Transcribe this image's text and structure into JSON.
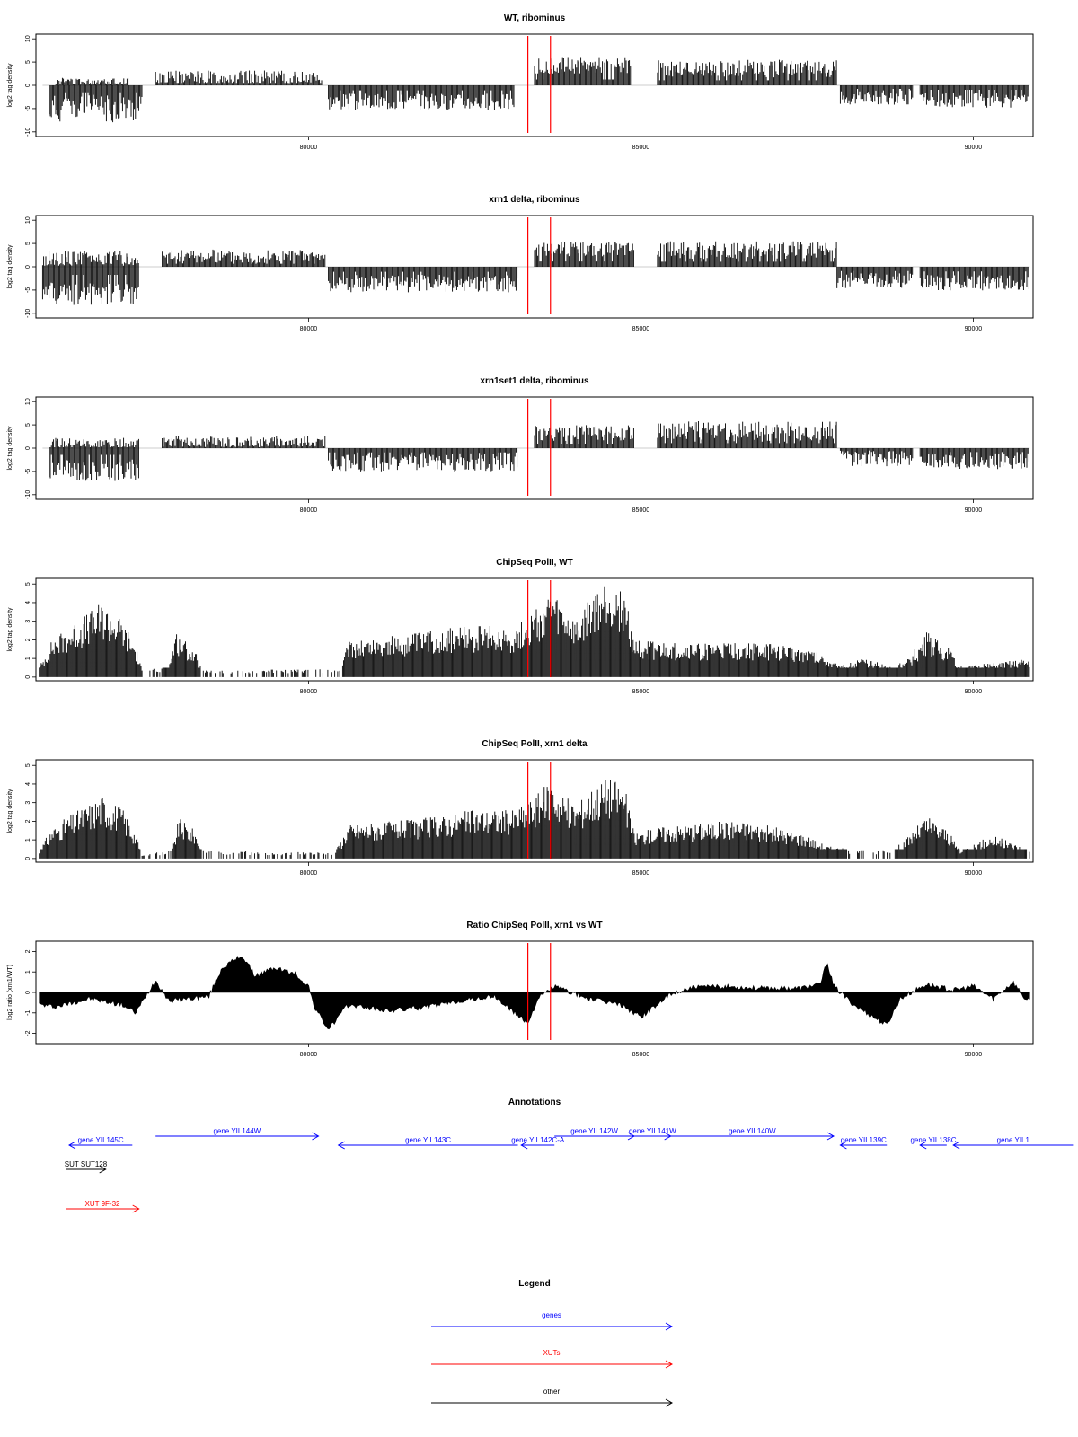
{
  "colors": {
    "genes": "#0000ff",
    "xuts": "#ff0000",
    "other": "#000000",
    "bars": "#000000",
    "marker": "#ff0000"
  },
  "xaxis": {
    "xlim": [
      75900,
      90900
    ],
    "ticks": [
      80000,
      85000,
      90000
    ],
    "tick_labels": [
      "80000",
      "85000",
      "90000"
    ]
  },
  "markers": [
    83300,
    83640
  ],
  "chart_data": [
    {
      "type": "bar",
      "title": "WT, ribominus",
      "ylabel": "log2 tag density",
      "ylim": [
        -11,
        11
      ],
      "yticks": [
        10,
        5,
        0,
        -5,
        -10
      ],
      "ytick_labels": [
        "10",
        "5",
        "0",
        "-5",
        "-10"
      ],
      "segments": [
        {
          "x": [
            76100,
            77500
          ],
          "y": -5,
          "amp": 3,
          "seed": 11
        },
        {
          "x": [
            76200,
            77300
          ],
          "y": 0.8,
          "amp": 0.8,
          "seed": 12
        },
        {
          "x": [
            77700,
            80200
          ],
          "y": 1.8,
          "amp": 1.4,
          "seed": 13
        },
        {
          "x": [
            80300,
            83100
          ],
          "y": -3.6,
          "amp": 1.8,
          "seed": 14
        },
        {
          "x": [
            83400,
            84850
          ],
          "y": 4.2,
          "amp": 1.7,
          "seed": 15
        },
        {
          "x": [
            85250,
            87950
          ],
          "y": 3.6,
          "amp": 1.9,
          "seed": 16
        },
        {
          "x": [
            88000,
            89100
          ],
          "y": -2.6,
          "amp": 1.6,
          "seed": 17
        },
        {
          "x": [
            89200,
            90850
          ],
          "y": -3.2,
          "amp": 1.6,
          "seed": 18
        }
      ]
    },
    {
      "type": "bar",
      "title": "xrn1 delta, ribominus",
      "ylabel": "log2 tag density",
      "ylim": [
        -11,
        11
      ],
      "yticks": [
        10,
        5,
        0,
        -5,
        -10
      ],
      "ytick_labels": [
        "10",
        "5",
        "0",
        "-5",
        "-10"
      ],
      "segments": [
        {
          "x": [
            76000,
            77450
          ],
          "y": -5.8,
          "amp": 2.4,
          "seed": 21
        },
        {
          "x": [
            76000,
            77450
          ],
          "y": 1.8,
          "amp": 1.6,
          "seed": 22
        },
        {
          "x": [
            77800,
            80250
          ],
          "y": 2.2,
          "amp": 1.5,
          "seed": 23
        },
        {
          "x": [
            80300,
            83150
          ],
          "y": -3.6,
          "amp": 1.9,
          "seed": 24
        },
        {
          "x": [
            83400,
            84900
          ],
          "y": 3.8,
          "amp": 1.6,
          "seed": 25
        },
        {
          "x": [
            85250,
            87950
          ],
          "y": 3.6,
          "amp": 1.9,
          "seed": 26
        },
        {
          "x": [
            87950,
            89100
          ],
          "y": -3,
          "amp": 1.7,
          "seed": 27
        },
        {
          "x": [
            89200,
            90850
          ],
          "y": -3.4,
          "amp": 1.7,
          "seed": 28
        }
      ]
    },
    {
      "type": "bar",
      "title": "xrn1set1 delta, ribominus",
      "ylabel": "log2 tag density",
      "ylim": [
        -11,
        11
      ],
      "yticks": [
        10,
        5,
        0,
        -5,
        -10
      ],
      "ytick_labels": [
        "10",
        "5",
        "0",
        "-5",
        "-10"
      ],
      "segments": [
        {
          "x": [
            76100,
            77450
          ],
          "y": -4.8,
          "amp": 2.4,
          "seed": 31
        },
        {
          "x": [
            76100,
            77450
          ],
          "y": 1,
          "amp": 1.2,
          "seed": 32
        },
        {
          "x": [
            77800,
            80250
          ],
          "y": 1.4,
          "amp": 1.2,
          "seed": 33
        },
        {
          "x": [
            80300,
            83150
          ],
          "y": -3,
          "amp": 2,
          "seed": 34
        },
        {
          "x": [
            83400,
            84900
          ],
          "y": 3.2,
          "amp": 1.8,
          "seed": 35
        },
        {
          "x": [
            85250,
            87950
          ],
          "y": 3.6,
          "amp": 2.2,
          "seed": 36
        },
        {
          "x": [
            88000,
            89100
          ],
          "y": -2.2,
          "amp": 1.7,
          "seed": 37
        },
        {
          "x": [
            89200,
            90850
          ],
          "y": -2.8,
          "amp": 1.7,
          "seed": 38
        }
      ]
    },
    {
      "type": "bar",
      "title": "ChipSeq PolII, WT",
      "ylabel": "log2 tag density",
      "ylim": [
        -0.2,
        5.3
      ],
      "yticks": [
        5,
        4,
        3,
        2,
        1,
        0
      ],
      "ytick_labels": [
        "5",
        "4",
        "3",
        "2",
        "1",
        "0"
      ],
      "profile": [
        [
          75950,
          0.5
        ],
        [
          76150,
          1.8
        ],
        [
          76500,
          2.6
        ],
        [
          76900,
          3.5
        ],
        [
          77200,
          2.7
        ],
        [
          77400,
          1.5
        ],
        [
          77500,
          0.3
        ],
        [
          77900,
          0.5
        ],
        [
          78000,
          2.2
        ],
        [
          78300,
          1.2
        ],
        [
          78400,
          0.3
        ],
        [
          80500,
          0.4
        ],
        [
          80600,
          1.8
        ],
        [
          81500,
          2
        ],
        [
          82000,
          2.3
        ],
        [
          82700,
          2.4
        ],
        [
          83100,
          2.3
        ],
        [
          83350,
          3
        ],
        [
          83650,
          4
        ],
        [
          83900,
          3
        ],
        [
          84050,
          2.5
        ],
        [
          84200,
          3.5
        ],
        [
          84500,
          4.6
        ],
        [
          84750,
          4
        ],
        [
          84900,
          1.8
        ],
        [
          85300,
          1.6
        ],
        [
          86800,
          1.6
        ],
        [
          87500,
          1.4
        ],
        [
          87800,
          1
        ],
        [
          88000,
          0.5
        ],
        [
          88300,
          0.9
        ],
        [
          88800,
          0.5
        ],
        [
          89000,
          0.8
        ],
        [
          89300,
          2.1
        ],
        [
          89600,
          1.5
        ],
        [
          89800,
          0.5
        ],
        [
          90400,
          0.7
        ],
        [
          90850,
          0.9
        ]
      ]
    },
    {
      "type": "bar",
      "title": "ChipSeq PolII, xrn1 delta",
      "ylabel": "log2 tag density",
      "ylim": [
        -0.2,
        5.3
      ],
      "yticks": [
        5,
        4,
        3,
        2,
        1,
        0
      ],
      "ytick_labels": [
        "5",
        "4",
        "3",
        "2",
        "1",
        "0"
      ],
      "profile": [
        [
          75950,
          0.4
        ],
        [
          76150,
          1.5
        ],
        [
          76500,
          2.2
        ],
        [
          76900,
          3
        ],
        [
          77200,
          2.4
        ],
        [
          77400,
          1.2
        ],
        [
          77500,
          0.2
        ],
        [
          77950,
          0.4
        ],
        [
          78050,
          1.9
        ],
        [
          78300,
          1.3
        ],
        [
          78400,
          0.4
        ],
        [
          79500,
          0.3
        ],
        [
          80400,
          0.3
        ],
        [
          80600,
          1.6
        ],
        [
          81500,
          1.8
        ],
        [
          82000,
          2
        ],
        [
          82500,
          2.3
        ],
        [
          83100,
          2.3
        ],
        [
          83350,
          2.8
        ],
        [
          83650,
          3.7
        ],
        [
          83900,
          2.8
        ],
        [
          84050,
          2.6
        ],
        [
          84200,
          3.2
        ],
        [
          84500,
          3.9
        ],
        [
          84750,
          3.5
        ],
        [
          84900,
          1.2
        ],
        [
          85300,
          1.5
        ],
        [
          86400,
          1.8
        ],
        [
          87000,
          1.5
        ],
        [
          87500,
          1.1
        ],
        [
          87800,
          0.6
        ],
        [
          88200,
          0.4
        ],
        [
          88800,
          0.4
        ],
        [
          89000,
          1
        ],
        [
          89300,
          2
        ],
        [
          89600,
          1.4
        ],
        [
          89800,
          0.4
        ],
        [
          90300,
          1.1
        ],
        [
          90850,
          0.4
        ]
      ]
    },
    {
      "type": "area",
      "title": "Ratio ChipSeq PolII, xrn1 vs WT",
      "ylabel": "log2 ratio (xrn1/WT)",
      "ylim": [
        -2.5,
        2.5
      ],
      "yticks": [
        2,
        1,
        0,
        -1,
        -2
      ],
      "ytick_labels": [
        "2",
        "1",
        "0",
        "-1",
        "-2"
      ],
      "profile": [
        [
          75950,
          -0.6
        ],
        [
          76200,
          -0.7
        ],
        [
          76700,
          -0.3
        ],
        [
          77200,
          -0.6
        ],
        [
          77400,
          -1
        ],
        [
          77700,
          0.6
        ],
        [
          77900,
          -0.4
        ],
        [
          78500,
          -0.2
        ],
        [
          78700,
          1.2
        ],
        [
          79000,
          1.8
        ],
        [
          79200,
          0.8
        ],
        [
          79500,
          1.2
        ],
        [
          79800,
          0.9
        ],
        [
          80000,
          0.3
        ],
        [
          80100,
          -0.8
        ],
        [
          80300,
          -1.8
        ],
        [
          80600,
          -0.6
        ],
        [
          81200,
          -0.9
        ],
        [
          81800,
          -0.7
        ],
        [
          82300,
          -0.4
        ],
        [
          82800,
          -0.2
        ],
        [
          83100,
          -1
        ],
        [
          83300,
          -1.5
        ],
        [
          83450,
          -0.3
        ],
        [
          83700,
          0.3
        ],
        [
          84200,
          -0.3
        ],
        [
          84700,
          -0.6
        ],
        [
          85000,
          -1.2
        ],
        [
          85400,
          -0.2
        ],
        [
          85700,
          0.2
        ],
        [
          86200,
          0.3
        ],
        [
          86800,
          0.2
        ],
        [
          87400,
          0.2
        ],
        [
          87700,
          0.4
        ],
        [
          87800,
          1.5
        ],
        [
          87900,
          0.3
        ],
        [
          88200,
          -0.6
        ],
        [
          88500,
          -1.2
        ],
        [
          88700,
          -1.6
        ],
        [
          88900,
          -0.3
        ],
        [
          89300,
          0.4
        ],
        [
          89700,
          0.1
        ],
        [
          90000,
          0.3
        ],
        [
          90300,
          -0.3
        ],
        [
          90600,
          0.5
        ],
        [
          90800,
          -0.4
        ]
      ]
    }
  ],
  "annotations": {
    "title": "Annotations",
    "items": [
      {
        "label": "gene YIL145C",
        "x": [
          76400,
          77350
        ],
        "dir": "left",
        "row": 1,
        "kind": "genes"
      },
      {
        "label": "gene YIL144W",
        "x": [
          77700,
          80150
        ],
        "dir": "right",
        "row": 0,
        "kind": "genes"
      },
      {
        "label": "gene YIL143C",
        "x": [
          80450,
          83150
        ],
        "dir": "left",
        "row": 1,
        "kind": "genes"
      },
      {
        "label": "gene YIL142C-A",
        "x": [
          83200,
          83700
        ],
        "dir": "left",
        "row": 1,
        "kind": "genes"
      },
      {
        "label": "gene YIL142W",
        "x": [
          83700,
          84900
        ],
        "dir": "right",
        "row": 0,
        "kind": "genes"
      },
      {
        "label": "gene YIL141W",
        "x": [
          84900,
          85450
        ],
        "dir": "right",
        "row": 0,
        "kind": "genes"
      },
      {
        "label": "gene YIL140W",
        "x": [
          85450,
          87900
        ],
        "dir": "right",
        "row": 0,
        "kind": "genes"
      },
      {
        "label": "gene YIL139C",
        "x": [
          88000,
          88700
        ],
        "dir": "left",
        "row": 1,
        "kind": "genes"
      },
      {
        "label": "gene YIL138C",
        "x": [
          89200,
          89600
        ],
        "dir": "left",
        "row": 1,
        "kind": "genes"
      },
      {
        "label": "gene YIL1",
        "x": [
          89700,
          91500
        ],
        "dir": "left",
        "row": 1,
        "kind": "genes"
      },
      {
        "label": "SUT SUT128",
        "x": [
          76350,
          76950
        ],
        "dir": "right",
        "row": 2,
        "kind": "other"
      },
      {
        "label": "XUT 9F-32",
        "x": [
          76350,
          77450
        ],
        "dir": "right",
        "row": 3,
        "kind": "xuts"
      }
    ]
  },
  "legend": {
    "title": "Legend",
    "items": [
      {
        "label": "genes",
        "kind": "genes"
      },
      {
        "label": "XUTs",
        "kind": "xuts"
      },
      {
        "label": "other",
        "kind": "other"
      }
    ]
  }
}
